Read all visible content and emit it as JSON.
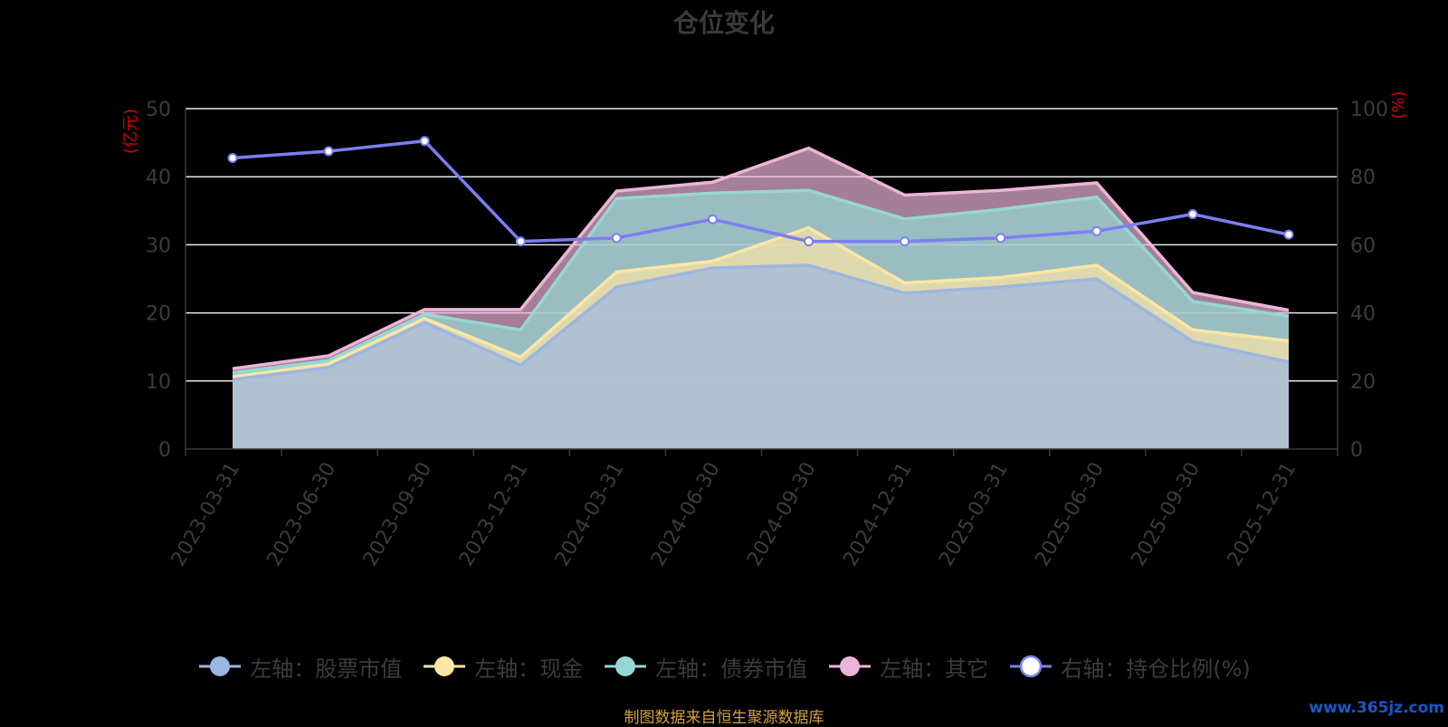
{
  "title": "仓位变化",
  "footer": "制图数据来自恒生聚源数据库",
  "watermark": "www.365jz.com",
  "chart_data": {
    "type": "area",
    "x": [
      "2023-03-31",
      "2023-06-30",
      "2023-09-30",
      "2023-12-31",
      "2024-03-31",
      "2024-06-30",
      "2024-09-30",
      "2024-12-31",
      "2025-03-31",
      "2025-06-30",
      "2025-09-30",
      "2025-12-31"
    ],
    "yunit_left": "(亿元)",
    "yunit_right": "(%)",
    "ylim_left": [
      0,
      50
    ],
    "ylim_right": [
      0,
      100
    ],
    "yticks_left": [
      0,
      10,
      20,
      30,
      40,
      50
    ],
    "yticks_right": [
      0,
      20,
      40,
      60,
      80,
      100
    ],
    "stacked": true,
    "grid": true,
    "series": [
      {
        "name": "左轴：股票市值",
        "axis": "left",
        "color": "#9db6e0",
        "values": [
          10.2,
          12.0,
          18.6,
          12.3,
          23.8,
          26.6,
          27.0,
          22.9,
          23.8,
          25.0,
          15.8,
          12.8
        ]
      },
      {
        "name": "左轴：现金",
        "axis": "left",
        "color": "#fbe6a4",
        "values": [
          0.4,
          0.5,
          0.6,
          1.2,
          2.2,
          1.0,
          5.5,
          1.5,
          1.4,
          2.0,
          1.7,
          3.1
        ]
      },
      {
        "name": "左轴：债券市值",
        "axis": "left",
        "color": "#96d7d3",
        "values": [
          0.6,
          0.5,
          0.6,
          4.0,
          10.8,
          10.0,
          5.5,
          9.4,
          10.0,
          10.0,
          4.2,
          3.6
        ]
      },
      {
        "name": "左轴：其它",
        "axis": "left",
        "color": "#ebb5d7",
        "values": [
          0.6,
          0.7,
          0.7,
          3.0,
          1.1,
          1.6,
          6.2,
          3.5,
          2.8,
          2.1,
          1.3,
          0.9
        ]
      },
      {
        "name": "右轴：持仓比例(%)",
        "axis": "right",
        "type": "line",
        "color": "#7b7ff0",
        "values": [
          85.5,
          87.5,
          90.5,
          61.0,
          62.0,
          67.5,
          61.0,
          61.0,
          62.0,
          64.0,
          69.0,
          63.0
        ]
      }
    ],
    "legend_position": "bottom"
  }
}
